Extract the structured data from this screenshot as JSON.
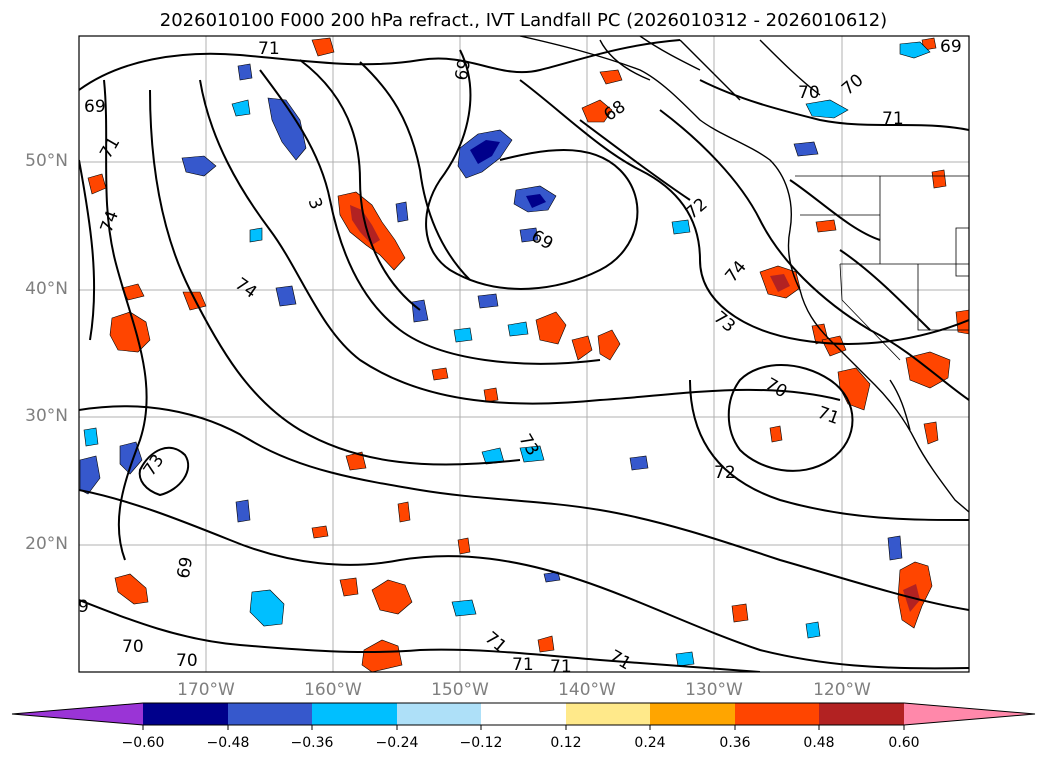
{
  "title": "2026010100 F000 200 hPa refract., IVT Landfall PC (2026010312 - 2026010612)",
  "map": {
    "lat_labels": [
      "50°N",
      "40°N",
      "30°N",
      "20°N"
    ],
    "lon_labels": [
      "170°W",
      "160°W",
      "150°W",
      "140°W",
      "130°W",
      "120°W"
    ],
    "contour_labels": [
      "71",
      "69",
      "69",
      "68",
      "70",
      "70",
      "71",
      "71",
      "69",
      "74",
      "3",
      "72",
      "74",
      "69",
      "74",
      "73",
      "70",
      "71",
      "73",
      "73",
      "72",
      "69",
      "70",
      "70",
      "71",
      "71",
      "71",
      "71",
      "9"
    ]
  },
  "colorbar": {
    "ticks": [
      "−0.60",
      "−0.48",
      "−0.36",
      "−0.24",
      "−0.12",
      "0.12",
      "0.24",
      "0.36",
      "0.48",
      "0.60"
    ],
    "colors": [
      "#9a34d6",
      "#00008b",
      "#3658cc",
      "#00bfff",
      "#aee0f8",
      "#ffffff",
      "#ffe98a",
      "#ffa500",
      "#ff4500",
      "#b22222",
      "#ff88aa"
    ]
  }
}
